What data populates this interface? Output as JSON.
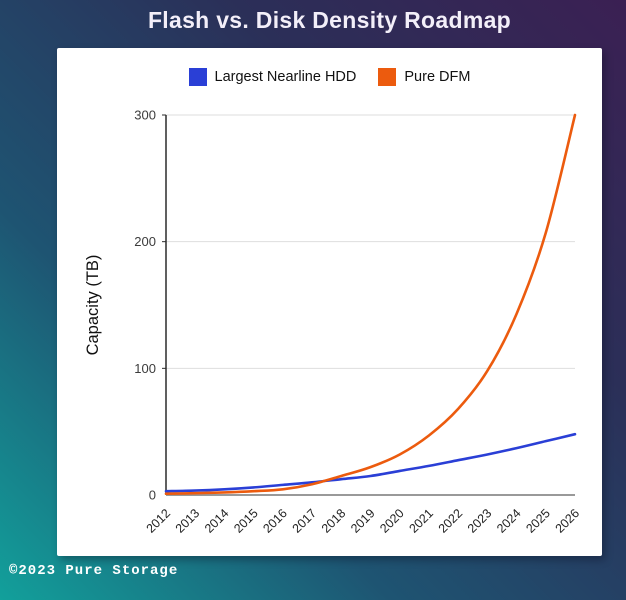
{
  "header": {
    "title": "Flash vs. Disk Density Roadmap"
  },
  "footer": {
    "copyright": "©2023 Pure Storage"
  },
  "colors": {
    "background_teal": "#12a09b",
    "background_navy": "#2b2f58",
    "background_purple": "#3b2053",
    "card_background": "#ffffff",
    "grid_line": "#dedede",
    "x_axis_line": "#999999",
    "y_axis_line": "#2b2b2b",
    "tick_label": "#3c3c3c",
    "hdd_blue": "#2a3fd6",
    "dfm_orange": "#ec5b0e"
  },
  "chart_data": {
    "type": "line",
    "title": "Flash vs. Disk Density Roadmap",
    "x": [
      "2012",
      "2013",
      "2014",
      "2015",
      "2016",
      "2017",
      "2018",
      "2019",
      "2020",
      "2021",
      "2022",
      "2023",
      "2024",
      "2025",
      "2026"
    ],
    "xlabel": "",
    "ylabel": "Capacity (TB)",
    "ylim": [
      0,
      300
    ],
    "yticks": [
      0,
      100,
      200,
      300
    ],
    "grid": true,
    "legend_position": "top",
    "series": [
      {
        "name": "Largest Nearline HDD",
        "color": "#2a3fd6",
        "values": [
          3,
          3.5,
          4.5,
          6,
          8,
          10,
          12.5,
          15,
          19,
          23,
          27.5,
          32,
          37,
          42.5,
          48
        ]
      },
      {
        "name": "Pure DFM",
        "color": "#ec5b0e",
        "values": [
          1,
          1.4,
          2,
          3,
          4.5,
          8.5,
          15,
          22,
          32,
          47,
          68,
          98,
          143,
          207,
          300
        ]
      }
    ]
  }
}
